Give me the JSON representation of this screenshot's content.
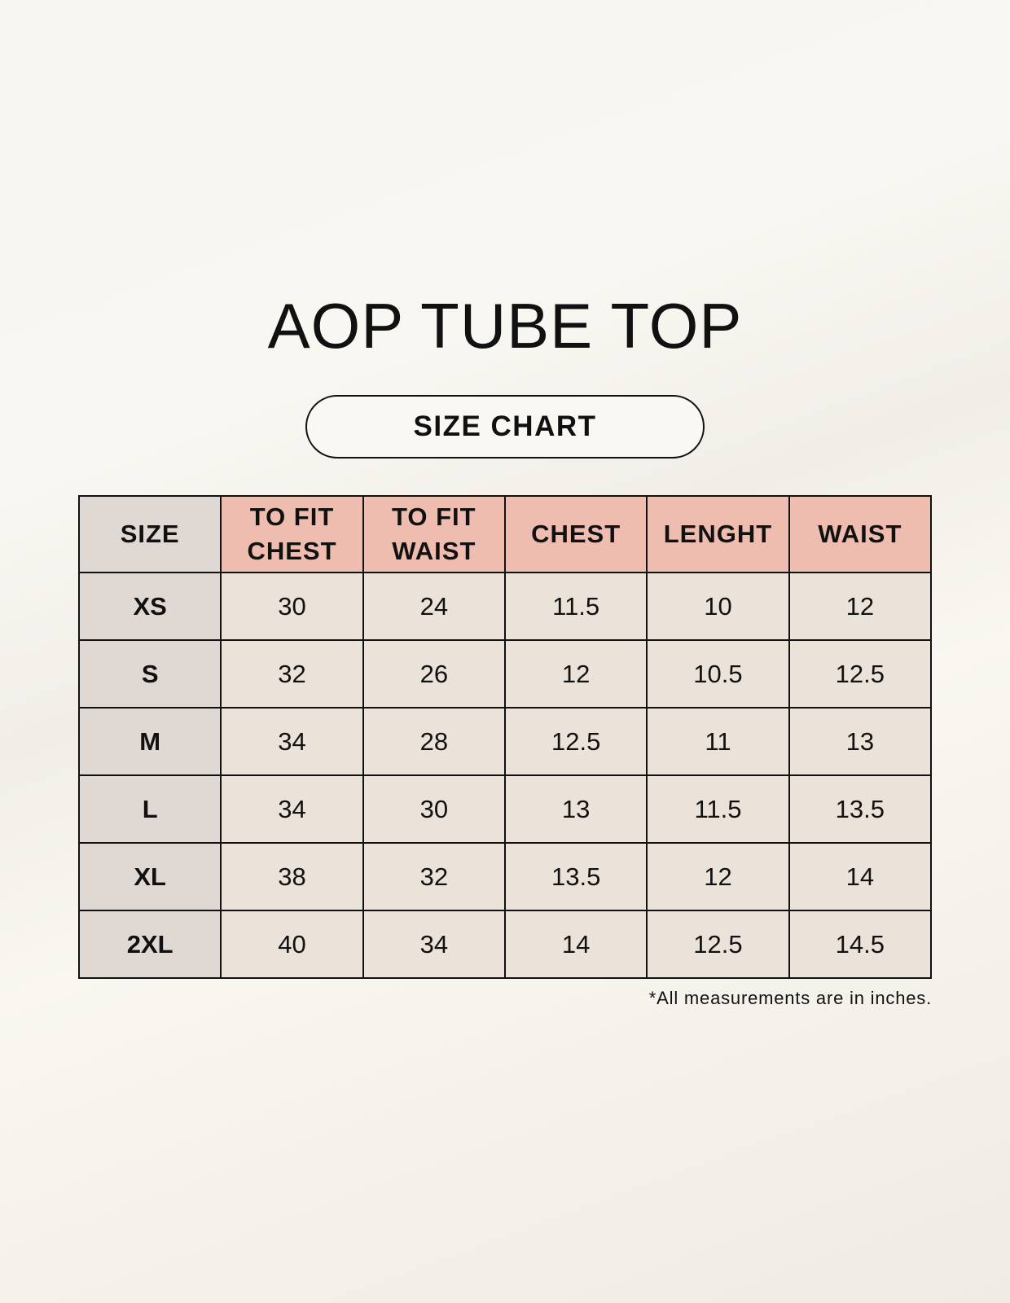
{
  "title": "AOP TUBE TOP",
  "subtitle": "SIZE CHART",
  "table": {
    "headers": [
      "SIZE",
      "TO FIT CHEST",
      "TO FIT WAIST",
      "CHEST",
      "LENGHT",
      "WAIST"
    ],
    "rows": [
      [
        "XS",
        "30",
        "24",
        "11.5",
        "10",
        "12"
      ],
      [
        "S",
        "32",
        "26",
        "12",
        "10.5",
        "12.5"
      ],
      [
        "M",
        "34",
        "28",
        "12.5",
        "11",
        "13"
      ],
      [
        "L",
        "34",
        "30",
        "13",
        "11.5",
        "13.5"
      ],
      [
        "XL",
        "38",
        "32",
        "13.5",
        "12",
        "14"
      ],
      [
        "2XL",
        "40",
        "34",
        "14",
        "12.5",
        "14.5"
      ]
    ]
  },
  "footnote": "*All measurements are in inches.",
  "colors": {
    "header_accent": "#efbdb0",
    "size_column": "#e0d9d3",
    "cell": "#ebe3d9"
  }
}
